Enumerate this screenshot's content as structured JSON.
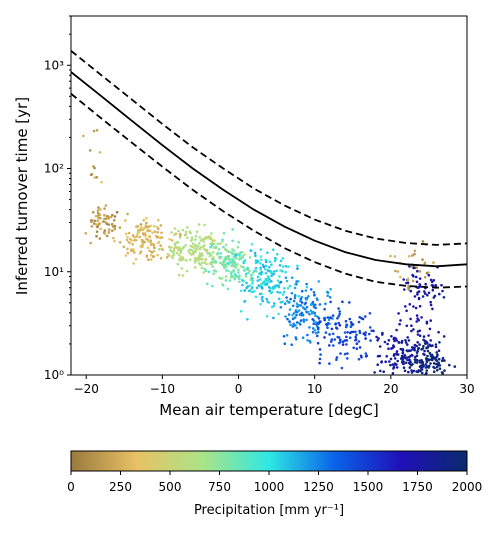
{
  "chart_data": {
    "type": "scatter",
    "title": "",
    "xlabel": "Mean air temperature [degC]",
    "ylabel": "Inferred turnover time [yr]",
    "xlim": [
      -22,
      30
    ],
    "ylim": [
      1,
      3000
    ],
    "yscale": "log",
    "grid": false,
    "xticks": [
      -20,
      -10,
      0,
      10,
      20,
      30
    ],
    "xtick_labels": [
      "−20",
      "−10",
      "0",
      "10",
      "20",
      "30"
    ],
    "yticks": [
      1,
      10,
      100,
      1000
    ],
    "ytick_labels": [
      "10⁰",
      "10¹",
      "10²",
      "10³"
    ],
    "colorbar": {
      "label": "Precipitation [mm yr⁻¹]",
      "range": [
        0,
        2000
      ],
      "ticks": [
        0,
        250,
        500,
        750,
        1000,
        1250,
        1500,
        1750,
        2000
      ],
      "colors": [
        "#9a7a3e",
        "#e8c265",
        "#aae488",
        "#2ee8e4",
        "#0a62e8",
        "#2010b8",
        "#0b2a6e"
      ]
    },
    "series": [
      {
        "style": "solid",
        "x": [
          -22,
          -18,
          -14,
          -10,
          -6,
          -2,
          2,
          6,
          10,
          14,
          18,
          22,
          26,
          30
        ],
        "y": [
          860,
          500,
          290,
          168,
          100,
          62,
          40,
          27.5,
          20,
          15.5,
          13,
          11.8,
          11.3,
          11.8
        ]
      },
      {
        "style": "dashed",
        "x": [
          -22,
          -18,
          -14,
          -10,
          -6,
          -2,
          2,
          6,
          10,
          14,
          18,
          22,
          26,
          30
        ],
        "y": [
          1380,
          800,
          465,
          270,
          160,
          100,
          64,
          44,
          32,
          25,
          21,
          19,
          18.2,
          18.8
        ]
      },
      {
        "style": "dashed",
        "x": [
          -22,
          -18,
          -14,
          -10,
          -6,
          -2,
          2,
          6,
          10,
          14,
          18,
          22,
          26,
          30
        ],
        "y": [
          530,
          305,
          178,
          104,
          62,
          38.5,
          25,
          17,
          12.4,
          9.6,
          8,
          7.3,
          7,
          7.2
        ]
      }
    ],
    "scatter_clusters": [
      {
        "x": -18,
        "y": 30,
        "n": 60,
        "sx": 2.5,
        "sy": 0.3,
        "precip": 150
      },
      {
        "x": -12,
        "y": 20,
        "n": 130,
        "sx": 3.5,
        "sy": 0.4,
        "precip": 300
      },
      {
        "x": -6,
        "y": 16,
        "n": 160,
        "sx": 3.5,
        "sy": 0.4,
        "precip": 600
      },
      {
        "x": -1,
        "y": 12,
        "n": 160,
        "sx": 3.5,
        "sy": 0.45,
        "precip": 800
      },
      {
        "x": 4,
        "y": 8,
        "n": 160,
        "sx": 3.5,
        "sy": 0.6,
        "precip": 1050
      },
      {
        "x": 9,
        "y": 4,
        "n": 140,
        "sx": 3.5,
        "sy": 0.6,
        "precip": 1250
      },
      {
        "x": 14,
        "y": 2.5,
        "n": 110,
        "sx": 4,
        "sy": 0.6,
        "precip": 1450
      },
      {
        "x": 22,
        "y": 1.5,
        "n": 150,
        "sx": 3.5,
        "sy": 0.5,
        "precip": 1800
      },
      {
        "x": 25,
        "y": 1.3,
        "n": 120,
        "sx": 2.5,
        "sy": 0.4,
        "precip": 1950
      },
      {
        "x": 24,
        "y": 6,
        "n": 80,
        "sx": 3,
        "sy": 0.9,
        "precip": 1750
      },
      {
        "x": 23,
        "y": 12,
        "n": 30,
        "sx": 3,
        "sy": 0.5,
        "precip": 150
      },
      {
        "x": -19,
        "y": 120,
        "n": 12,
        "sx": 1.5,
        "sy": 0.5,
        "precip": 200
      }
    ]
  }
}
